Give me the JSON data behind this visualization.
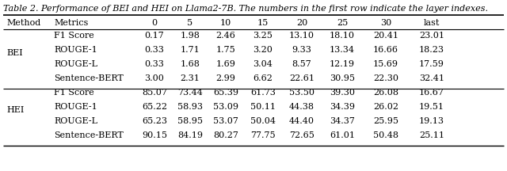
{
  "title": "Table 2. Performance of BEI and HEI on Llama2-7B. The numbers in the first row indicate the layer indexes.",
  "col_headers": [
    "Method",
    "Metrics",
    "0",
    "5",
    "10",
    "15",
    "20",
    "25",
    "30",
    "last"
  ],
  "rows": [
    {
      "method": "BEI",
      "metrics": "F1 Score",
      "values": [
        "0.17",
        "1.98",
        "2.46",
        "3.25",
        "13.10",
        "18.10",
        "20.41",
        "23.01"
      ]
    },
    {
      "method": "BEI",
      "metrics": "ROUGE-1",
      "values": [
        "0.33",
        "1.71",
        "1.75",
        "3.20",
        "9.33",
        "13.34",
        "16.66",
        "18.23"
      ]
    },
    {
      "method": "BEI",
      "metrics": "ROUGE-L",
      "values": [
        "0.33",
        "1.68",
        "1.69",
        "3.04",
        "8.57",
        "12.19",
        "15.69",
        "17.59"
      ]
    },
    {
      "method": "BEI",
      "metrics": "Sentence-BERT",
      "values": [
        "3.00",
        "2.31",
        "2.99",
        "6.62",
        "22.61",
        "30.95",
        "22.30",
        "32.41"
      ]
    },
    {
      "method": "HEI",
      "metrics": "F1 Score",
      "values": [
        "85.07",
        "73.44",
        "65.39",
        "61.73",
        "53.50",
        "39.30",
        "26.08",
        "16.67"
      ]
    },
    {
      "method": "HEI",
      "metrics": "ROUGE-1",
      "values": [
        "65.22",
        "58.93",
        "53.09",
        "50.11",
        "44.38",
        "34.39",
        "26.02",
        "19.51"
      ]
    },
    {
      "method": "HEI",
      "metrics": "ROUGE-L",
      "values": [
        "65.23",
        "58.95",
        "53.07",
        "50.04",
        "44.40",
        "34.37",
        "25.95",
        "19.13"
      ]
    },
    {
      "method": "HEI",
      "metrics": "Sentence-BERT",
      "values": [
        "90.15",
        "84.19",
        "80.27",
        "77.75",
        "72.65",
        "61.01",
        "50.48",
        "25.11"
      ]
    }
  ],
  "font_size": 8.0,
  "font_family": "DejaVu Serif",
  "bg_color": "#ffffff"
}
